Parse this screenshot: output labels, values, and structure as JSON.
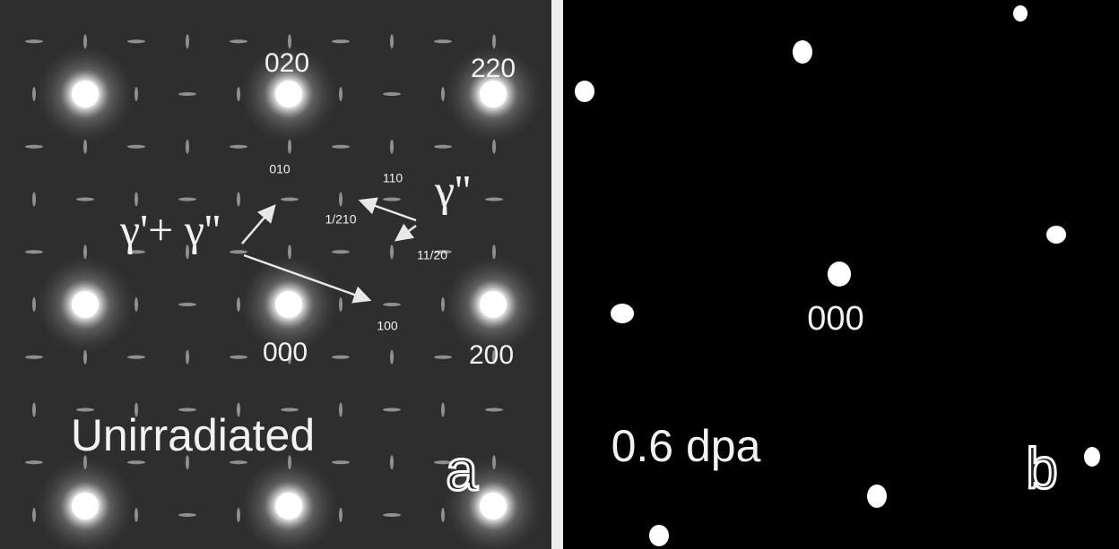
{
  "panel_a": {
    "labels": [
      "020",
      "220",
      "010",
      "110",
      "1/210",
      "11/20",
      "100",
      "000",
      "200"
    ],
    "gamma_double_prime": "γ''",
    "gamma_mix": "γ'+ γ''",
    "condition": "Unirradiated",
    "letter": "a"
  },
  "panel_b": {
    "labels": [
      "000"
    ],
    "condition": "0.6 dpa",
    "letter": "b"
  }
}
